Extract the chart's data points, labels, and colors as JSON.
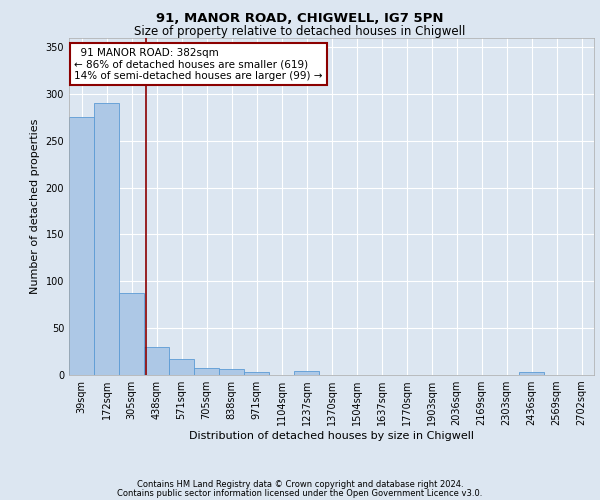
{
  "title_line1": "91, MANOR ROAD, CHIGWELL, IG7 5PN",
  "title_line2": "Size of property relative to detached houses in Chigwell",
  "xlabel": "Distribution of detached houses by size in Chigwell",
  "ylabel": "Number of detached properties",
  "bar_labels": [
    "39sqm",
    "172sqm",
    "305sqm",
    "438sqm",
    "571sqm",
    "705sqm",
    "838sqm",
    "971sqm",
    "1104sqm",
    "1237sqm",
    "1370sqm",
    "1504sqm",
    "1637sqm",
    "1770sqm",
    "1903sqm",
    "2036sqm",
    "2169sqm",
    "2303sqm",
    "2436sqm",
    "2569sqm",
    "2702sqm"
  ],
  "bar_heights": [
    275,
    290,
    88,
    30,
    17,
    7,
    6,
    3,
    0,
    4,
    0,
    0,
    0,
    0,
    0,
    0,
    0,
    0,
    3,
    0,
    0
  ],
  "bar_color": "#adc8e6",
  "bar_edge_color": "#5b9bd5",
  "background_color": "#dce6f1",
  "plot_bg_color": "#dce6f1",
  "annotation_text": "  91 MANOR ROAD: 382sqm\n← 86% of detached houses are smaller (619)\n14% of semi-detached houses are larger (99) →",
  "annotation_box_color": "white",
  "annotation_box_edge_color": "#8b0000",
  "ylim": [
    0,
    360
  ],
  "yticks": [
    0,
    50,
    100,
    150,
    200,
    250,
    300,
    350
  ],
  "footer_line1": "Contains HM Land Registry data © Crown copyright and database right 2024.",
  "footer_line2": "Contains public sector information licensed under the Open Government Licence v3.0.",
  "title_fontsize": 9.5,
  "subtitle_fontsize": 8.5,
  "tick_fontsize": 7,
  "ylabel_fontsize": 8,
  "xlabel_fontsize": 8,
  "annotation_fontsize": 7.5,
  "footer_fontsize": 6
}
